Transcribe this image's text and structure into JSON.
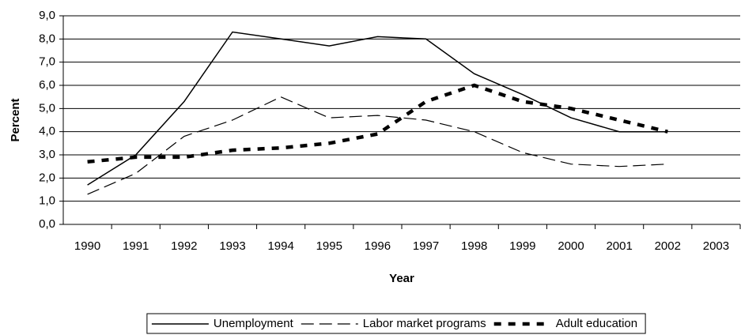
{
  "chart_data": {
    "type": "line",
    "x_label": "Year",
    "y_label": "Percent",
    "categories": [
      "1990",
      "1991",
      "1992",
      "1993",
      "1994",
      "1995",
      "1996",
      "1997",
      "1998",
      "1999",
      "2000",
      "2001",
      "2002",
      "2003"
    ],
    "series": [
      {
        "name": "Unemployment",
        "color": "#000000",
        "line_style": "solid",
        "values": [
          1.7,
          3.0,
          5.3,
          8.3,
          8.0,
          7.7,
          8.1,
          8.0,
          6.5,
          5.6,
          4.6,
          4.0,
          4.0,
          null
        ]
      },
      {
        "name": "Labor market programs",
        "color": "#000000",
        "line_style": "dashed",
        "values": [
          1.3,
          2.2,
          3.8,
          4.5,
          5.5,
          4.6,
          4.7,
          4.5,
          4.0,
          3.1,
          2.6,
          2.5,
          2.6,
          null
        ]
      },
      {
        "name": "Adult education",
        "color": "#000000",
        "line_style": "heavy-dashed",
        "values": [
          2.7,
          2.9,
          2.9,
          3.2,
          3.3,
          3.5,
          3.9,
          5.3,
          6.0,
          5.3,
          5.0,
          4.5,
          4.0,
          null
        ]
      }
    ],
    "ylim": [
      0,
      9
    ],
    "yticks": [
      {
        "value": 0,
        "label": "0,0"
      },
      {
        "value": 1,
        "label": "1,0"
      },
      {
        "value": 2,
        "label": "2,0"
      },
      {
        "value": 3,
        "label": "3,0"
      },
      {
        "value": 4,
        "label": "4,0"
      },
      {
        "value": 5,
        "label": "5,0"
      },
      {
        "value": 6,
        "label": "6,0"
      },
      {
        "value": 7,
        "label": "7,0"
      },
      {
        "value": 8,
        "label": "8,0"
      },
      {
        "value": 9,
        "label": "9,0"
      }
    ],
    "grid": true,
    "legend": "bottom"
  }
}
